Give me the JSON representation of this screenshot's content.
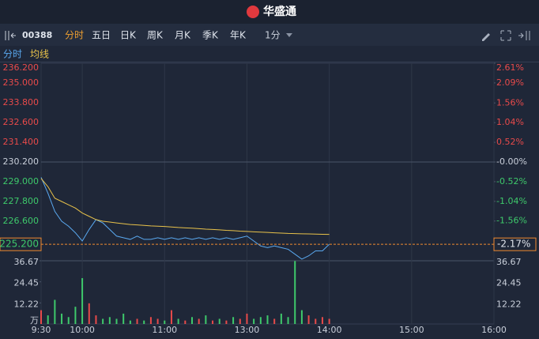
{
  "header": {
    "brand": "华盛通"
  },
  "toolbar": {
    "code": "00388",
    "tabs": [
      "分时",
      "五日",
      "日K",
      "周K",
      "月K",
      "季K",
      "年K"
    ],
    "period": "1分"
  },
  "chart_data": {
    "type": "line",
    "x": [
      0,
      5,
      10,
      15,
      20,
      25,
      30,
      35,
      40,
      45,
      50,
      55,
      60,
      65,
      70,
      75,
      80,
      85,
      90,
      95,
      100,
      105,
      110,
      115,
      120,
      125,
      130,
      135,
      140,
      145,
      150,
      155,
      160,
      165,
      170,
      175,
      180,
      185,
      190,
      195,
      200,
      205,
      210
    ],
    "xlim": [
      0,
      330
    ],
    "xticks": [
      {
        "value": 0,
        "label": "9:30"
      },
      {
        "value": 30,
        "label": "10:00"
      },
      {
        "value": 90,
        "label": "11:00"
      },
      {
        "value": 150,
        "label": "13:00"
      },
      {
        "value": 210,
        "label": "14:00"
      },
      {
        "value": 270,
        "label": "15:00"
      },
      {
        "value": 330,
        "label": "16:00"
      }
    ],
    "series": [
      {
        "name": "分时",
        "color": "#5aa9f0",
        "values": [
          229.27,
          228.3,
          227.2,
          226.6,
          226.3,
          225.9,
          225.4,
          226.1,
          226.7,
          226.5,
          226.1,
          225.7,
          225.6,
          225.5,
          225.7,
          225.5,
          225.5,
          225.6,
          225.5,
          225.6,
          225.5,
          225.6,
          225.5,
          225.6,
          225.5,
          225.6,
          225.5,
          225.6,
          225.5,
          225.6,
          225.7,
          225.4,
          225.1,
          225.0,
          225.1,
          225.0,
          224.9,
          224.6,
          224.3,
          224.5,
          224.8,
          224.8,
          225.2
        ]
      },
      {
        "name": "均线",
        "color": "#e8c24a",
        "values": [
          229.2,
          228.7,
          228.0,
          227.8,
          227.6,
          227.4,
          227.1,
          226.9,
          226.7,
          226.6,
          226.55,
          226.5,
          226.45,
          226.4,
          226.38,
          226.35,
          226.32,
          226.3,
          226.28,
          226.25,
          226.22,
          226.2,
          226.18,
          226.15,
          226.12,
          226.1,
          226.08,
          226.05,
          226.03,
          226.0,
          225.98,
          225.96,
          225.94,
          225.92,
          225.9,
          225.88,
          225.86,
          225.85,
          225.84,
          225.83,
          225.82,
          225.81,
          225.8
        ]
      }
    ],
    "ylim": [
      224.2,
      236.2
    ],
    "yticks": [
      {
        "value": 236.2,
        "label": "236.200"
      },
      {
        "value": 235,
        "label": "235.000"
      },
      {
        "value": 233.8,
        "label": "233.800"
      },
      {
        "value": 232.6,
        "label": "232.600"
      },
      {
        "value": 231.4,
        "label": "231.400"
      },
      {
        "value": 230.2,
        "label": "230.200"
      },
      {
        "value": 229,
        "label": "229.000"
      },
      {
        "value": 227.8,
        "label": "227.800"
      },
      {
        "value": 226.6,
        "label": "226.600"
      }
    ],
    "y2lim": [
      -2.61,
      2.61
    ],
    "y2ticks": [
      {
        "value": 2.61,
        "label": "2.61%"
      },
      {
        "value": 2.09,
        "label": "2.09%"
      },
      {
        "value": 1.56,
        "label": "1.56%"
      },
      {
        "value": 1.04,
        "label": "1.04%"
      },
      {
        "value": 0.52,
        "label": "0.52%"
      },
      {
        "value": 0,
        "label": "-0.00%"
      },
      {
        "value": -0.52,
        "label": "-0.52%"
      },
      {
        "value": -1.04,
        "label": "-1.04%"
      },
      {
        "value": -1.56,
        "label": "-1.56%"
      }
    ],
    "last_price": {
      "value": 225.2,
      "label": "225.200"
    },
    "last_change": {
      "value": -2.17,
      "label": "-2.17%"
    },
    "up_color": "#e84a4a",
    "down_color": "#3ec96b",
    "volume": {
      "values": [
        8,
        5,
        14,
        6,
        4,
        10,
        26.6,
        12,
        5,
        3,
        4,
        3,
        6,
        2,
        3,
        2,
        4,
        3,
        2,
        8,
        3,
        2,
        4,
        3,
        5,
        2,
        3,
        2,
        4,
        3,
        6,
        3,
        4,
        5,
        3,
        6,
        4,
        36.5,
        8,
        5,
        3,
        4,
        3
      ],
      "ylim": [
        0,
        36.67
      ],
      "yticks": [
        36.67,
        24.45,
        12.22
      ],
      "unit": "万"
    }
  }
}
